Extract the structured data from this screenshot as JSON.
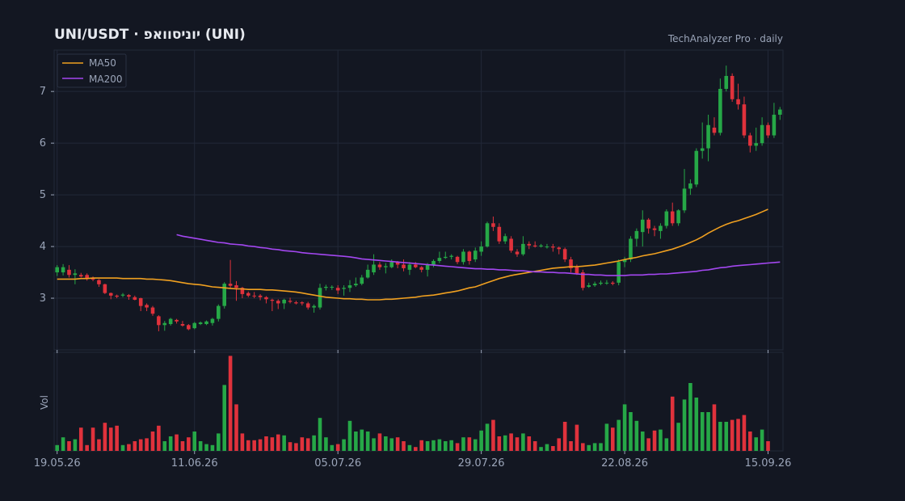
{
  "header": {
    "title": "UNI/USDT  ·  יוניסוואפ (UNI)",
    "source": "TechAnalyzer Pro · daily"
  },
  "colors": {
    "background": "#131722",
    "grid": "#222838",
    "text": "#9aa4b8",
    "title": "#e6e9ef",
    "up": "#26a847",
    "down": "#e0323c",
    "ma50": "#f0a020",
    "ma200": "#a347f0"
  },
  "chart_data": {
    "type": "candlestick",
    "title": "UNI/USDT  ·  יוניסוואפ (UNI)",
    "subtitle": "TechAnalyzer Pro · daily",
    "legend": {
      "position": "top-left",
      "entries": [
        "MA50",
        "MA200"
      ]
    },
    "grid": true,
    "price_axis": {
      "ylim": [
        2.0,
        7.8
      ],
      "ticks": [
        3,
        4,
        5,
        6,
        7
      ]
    },
    "volume_axis": {
      "label": "Vol",
      "ylim": [
        0,
        1.0
      ]
    },
    "x_ticks": [
      {
        "index": 0,
        "label": "19.05.26"
      },
      {
        "index": 23,
        "label": "11.06.26"
      },
      {
        "index": 47,
        "label": "05.07.26"
      },
      {
        "index": 71,
        "label": "29.07.26"
      },
      {
        "index": 95,
        "label": "22.08.26"
      },
      {
        "index": 119,
        "label": "15.09.26"
      }
    ],
    "start_date": "19.05.26",
    "ohlc": [
      [
        3.5,
        3.6,
        3.64,
        3.43
      ],
      [
        3.5,
        3.6,
        3.66,
        3.44
      ],
      [
        3.55,
        3.45,
        3.64,
        3.4
      ],
      [
        3.45,
        3.48,
        3.56,
        3.27
      ],
      [
        3.45,
        3.42,
        3.49,
        3.4
      ],
      [
        3.45,
        3.38,
        3.48,
        3.34
      ],
      [
        3.38,
        3.36,
        3.42,
        3.33
      ],
      [
        3.35,
        3.27,
        3.37,
        3.22
      ],
      [
        3.27,
        3.1,
        3.28,
        3.08
      ],
      [
        3.1,
        3.05,
        3.11,
        2.98
      ],
      [
        3.05,
        3.03,
        3.07,
        3.0
      ],
      [
        3.05,
        3.07,
        3.1,
        3.02
      ],
      [
        3.06,
        3.03,
        3.08,
        2.97
      ],
      [
        3.02,
        2.97,
        3.05,
        2.96
      ],
      [
        3.0,
        2.85,
        3.01,
        2.75
      ],
      [
        2.87,
        2.82,
        2.9,
        2.75
      ],
      [
        2.82,
        2.7,
        2.85,
        2.66
      ],
      [
        2.65,
        2.48,
        2.67,
        2.36
      ],
      [
        2.48,
        2.52,
        2.56,
        2.37
      ],
      [
        2.5,
        2.6,
        2.62,
        2.47
      ],
      [
        2.58,
        2.55,
        2.6,
        2.51
      ],
      [
        2.5,
        2.47,
        2.56,
        2.45
      ],
      [
        2.48,
        2.4,
        2.5,
        2.38
      ],
      [
        2.42,
        2.52,
        2.54,
        2.4
      ],
      [
        2.5,
        2.53,
        2.55,
        2.48
      ],
      [
        2.5,
        2.55,
        2.57,
        2.48
      ],
      [
        2.52,
        2.6,
        2.62,
        2.47
      ],
      [
        2.6,
        2.85,
        2.88,
        2.55
      ],
      [
        2.85,
        3.28,
        3.31,
        2.8
      ],
      [
        3.28,
        3.24,
        3.74,
        3.2
      ],
      [
        3.25,
        3.2,
        3.33,
        2.95
      ],
      [
        3.2,
        3.08,
        3.22,
        3.0
      ],
      [
        3.1,
        3.05,
        3.13,
        3.02
      ],
      [
        3.05,
        3.04,
        3.12,
        3.0
      ],
      [
        3.05,
        3.02,
        3.08,
        2.96
      ],
      [
        3.02,
        2.98,
        3.04,
        2.9
      ],
      [
        2.97,
        2.95,
        2.99,
        2.75
      ],
      [
        2.95,
        2.9,
        2.98,
        2.79
      ],
      [
        2.9,
        2.97,
        2.99,
        2.79
      ],
      [
        2.95,
        2.93,
        3.01,
        2.9
      ],
      [
        2.92,
        2.9,
        2.95,
        2.88
      ],
      [
        2.92,
        2.9,
        2.94,
        2.86
      ],
      [
        2.9,
        2.82,
        2.93,
        2.78
      ],
      [
        2.82,
        2.85,
        2.88,
        2.72
      ],
      [
        2.82,
        3.2,
        3.28,
        2.78
      ],
      [
        3.2,
        3.22,
        3.26,
        3.15
      ],
      [
        3.22,
        3.22,
        3.25,
        3.16
      ],
      [
        3.2,
        3.15,
        3.25,
        3.08
      ],
      [
        3.18,
        3.2,
        3.25,
        3.05
      ],
      [
        3.2,
        3.25,
        3.35,
        3.12
      ],
      [
        3.25,
        3.28,
        3.4,
        3.22
      ],
      [
        3.28,
        3.4,
        3.45,
        3.25
      ],
      [
        3.4,
        3.55,
        3.65,
        3.38
      ],
      [
        3.5,
        3.65,
        3.85,
        3.45
      ],
      [
        3.65,
        3.6,
        3.7,
        3.55
      ],
      [
        3.6,
        3.62,
        3.68,
        3.48
      ],
      [
        3.6,
        3.7,
        3.75,
        3.58
      ],
      [
        3.7,
        3.65,
        3.72,
        3.58
      ],
      [
        3.65,
        3.58,
        3.75,
        3.52
      ],
      [
        3.55,
        3.65,
        3.7,
        3.45
      ],
      [
        3.65,
        3.6,
        3.7,
        3.58
      ],
      [
        3.6,
        3.55,
        3.62,
        3.5
      ],
      [
        3.55,
        3.65,
        3.68,
        3.42
      ],
      [
        3.65,
        3.72,
        3.75,
        3.6
      ],
      [
        3.72,
        3.78,
        3.9,
        3.68
      ],
      [
        3.78,
        3.8,
        3.9,
        3.76
      ],
      [
        3.8,
        3.82,
        3.85,
        3.75
      ],
      [
        3.8,
        3.7,
        3.82,
        3.66
      ],
      [
        3.7,
        3.9,
        3.95,
        3.65
      ],
      [
        3.9,
        3.72,
        3.92,
        3.65
      ],
      [
        3.75,
        3.92,
        3.98,
        3.7
      ],
      [
        3.9,
        4.0,
        4.1,
        3.82
      ],
      [
        4.0,
        4.45,
        4.48,
        3.98
      ],
      [
        4.45,
        4.38,
        4.58,
        4.3
      ],
      [
        4.38,
        4.1,
        4.45,
        4.05
      ],
      [
        4.1,
        4.2,
        4.25,
        4.05
      ],
      [
        4.15,
        3.92,
        4.2,
        3.88
      ],
      [
        3.9,
        3.85,
        3.95,
        3.8
      ],
      [
        3.85,
        4.05,
        4.2,
        3.82
      ],
      [
        4.05,
        4.02,
        4.1,
        3.95
      ],
      [
        4.02,
        4.0,
        4.1,
        3.98
      ],
      [
        4.0,
        4.02,
        4.05,
        3.98
      ],
      [
        4.0,
        4.0,
        4.05,
        3.96
      ],
      [
        4.0,
        3.98,
        4.05,
        3.9
      ],
      [
        3.98,
        3.95,
        4.0,
        3.85
      ],
      [
        3.95,
        3.75,
        3.98,
        3.7
      ],
      [
        3.75,
        3.58,
        3.8,
        3.5
      ],
      [
        3.6,
        3.48,
        3.65,
        3.45
      ],
      [
        3.5,
        3.2,
        3.55,
        3.15
      ],
      [
        3.22,
        3.25,
        3.3,
        3.2
      ],
      [
        3.25,
        3.28,
        3.32,
        3.22
      ],
      [
        3.28,
        3.3,
        3.34,
        3.25
      ],
      [
        3.3,
        3.3,
        3.35,
        3.26
      ],
      [
        3.3,
        3.28,
        3.33,
        3.25
      ],
      [
        3.3,
        3.7,
        3.75,
        3.25
      ],
      [
        3.7,
        3.75,
        3.8,
        3.6
      ],
      [
        3.75,
        4.15,
        4.2,
        3.7
      ],
      [
        4.15,
        4.3,
        4.35,
        4.0
      ],
      [
        4.28,
        4.52,
        4.7,
        4.0
      ],
      [
        4.52,
        4.35,
        4.55,
        4.25
      ],
      [
        4.35,
        4.32,
        4.4,
        4.2
      ],
      [
        4.3,
        4.4,
        4.45,
        4.15
      ],
      [
        4.4,
        4.68,
        4.72,
        4.35
      ],
      [
        4.68,
        4.45,
        4.85,
        4.4
      ],
      [
        4.45,
        4.7,
        4.72,
        4.4
      ],
      [
        4.7,
        5.12,
        5.5,
        4.65
      ],
      [
        5.12,
        5.22,
        5.3,
        5.0
      ],
      [
        5.2,
        5.85,
        5.9,
        5.15
      ],
      [
        5.85,
        5.9,
        6.4,
        5.7
      ],
      [
        5.9,
        6.35,
        6.55,
        5.65
      ],
      [
        6.3,
        6.2,
        6.5,
        6.15
      ],
      [
        6.2,
        7.05,
        7.25,
        6.15
      ],
      [
        7.05,
        7.3,
        7.5,
        7.0
      ],
      [
        7.3,
        6.85,
        7.35,
        6.8
      ],
      [
        6.85,
        6.75,
        7.15,
        6.65
      ],
      [
        6.75,
        6.15,
        6.9,
        6.1
      ],
      [
        6.15,
        5.95,
        6.2,
        5.82
      ],
      [
        5.95,
        6.0,
        6.3,
        5.85
      ],
      [
        6.0,
        6.35,
        6.5,
        5.95
      ],
      [
        6.35,
        6.15,
        6.4,
        6.1
      ],
      [
        6.15,
        6.55,
        6.78,
        6.1
      ],
      [
        6.55,
        6.65,
        6.7,
        6.45
      ]
    ],
    "volume": [
      0.06,
      0.14,
      0.1,
      0.12,
      0.24,
      0.06,
      0.24,
      0.12,
      0.29,
      0.24,
      0.26,
      0.06,
      0.07,
      0.1,
      0.12,
      0.13,
      0.2,
      0.26,
      0.1,
      0.15,
      0.17,
      0.1,
      0.14,
      0.2,
      0.1,
      0.07,
      0.06,
      0.18,
      0.68,
      0.98,
      0.48,
      0.18,
      0.11,
      0.11,
      0.12,
      0.15,
      0.14,
      0.17,
      0.16,
      0.09,
      0.08,
      0.14,
      0.13,
      0.16,
      0.34,
      0.14,
      0.06,
      0.07,
      0.12,
      0.31,
      0.2,
      0.22,
      0.2,
      0.13,
      0.18,
      0.15,
      0.13,
      0.14,
      0.1,
      0.06,
      0.04,
      0.11,
      0.1,
      0.11,
      0.12,
      0.1,
      0.11,
      0.08,
      0.14,
      0.14,
      0.12,
      0.21,
      0.28,
      0.32,
      0.15,
      0.16,
      0.18,
      0.14,
      0.18,
      0.15,
      0.1,
      0.04,
      0.07,
      0.05,
      0.13,
      0.3,
      0.1,
      0.27,
      0.08,
      0.06,
      0.08,
      0.08,
      0.28,
      0.24,
      0.32,
      0.48,
      0.4,
      0.31,
      0.2,
      0.13,
      0.21,
      0.22,
      0.13,
      0.56,
      0.29,
      0.53,
      0.7,
      0.55,
      0.4,
      0.4,
      0.48,
      0.3,
      0.3,
      0.32,
      0.33,
      0.37,
      0.2,
      0.14,
      0.22,
      0.1
    ],
    "ma50_start_index": 0,
    "ma50": [
      3.37,
      3.37,
      3.37,
      3.37,
      3.38,
      3.38,
      3.39,
      3.39,
      3.39,
      3.39,
      3.39,
      3.38,
      3.38,
      3.38,
      3.38,
      3.37,
      3.37,
      3.36,
      3.35,
      3.34,
      3.32,
      3.3,
      3.28,
      3.27,
      3.26,
      3.24,
      3.22,
      3.21,
      3.2,
      3.19,
      3.18,
      3.18,
      3.17,
      3.17,
      3.17,
      3.16,
      3.16,
      3.15,
      3.14,
      3.13,
      3.12,
      3.1,
      3.08,
      3.06,
      3.04,
      3.02,
      3.01,
      3.0,
      2.99,
      2.99,
      2.98,
      2.98,
      2.97,
      2.97,
      2.97,
      2.98,
      2.98,
      2.99,
      3.0,
      3.01,
      3.02,
      3.04,
      3.05,
      3.06,
      3.08,
      3.1,
      3.12,
      3.14,
      3.17,
      3.2,
      3.22,
      3.26,
      3.3,
      3.34,
      3.38,
      3.41,
      3.44,
      3.46,
      3.48,
      3.5,
      3.52,
      3.54,
      3.56,
      3.58,
      3.59,
      3.6,
      3.61,
      3.61,
      3.62,
      3.63,
      3.64,
      3.66,
      3.68,
      3.7,
      3.72,
      3.75,
      3.77,
      3.79,
      3.82,
      3.84,
      3.86,
      3.89,
      3.92,
      3.95,
      3.99,
      4.03,
      4.08,
      4.13,
      4.19,
      4.26,
      4.32,
      4.38,
      4.43,
      4.47,
      4.5,
      4.54,
      4.58,
      4.62,
      4.67,
      4.72
    ],
    "ma200_start_index": 20,
    "ma200": [
      4.23,
      4.2,
      4.18,
      4.16,
      4.14,
      4.12,
      4.1,
      4.08,
      4.07,
      4.05,
      4.04,
      4.03,
      4.01,
      4.0,
      3.98,
      3.97,
      3.95,
      3.94,
      3.92,
      3.91,
      3.9,
      3.88,
      3.87,
      3.86,
      3.85,
      3.84,
      3.83,
      3.82,
      3.81,
      3.8,
      3.78,
      3.76,
      3.75,
      3.74,
      3.73,
      3.72,
      3.71,
      3.7,
      3.69,
      3.68,
      3.67,
      3.66,
      3.65,
      3.64,
      3.63,
      3.62,
      3.61,
      3.6,
      3.59,
      3.58,
      3.57,
      3.57,
      3.56,
      3.56,
      3.55,
      3.55,
      3.54,
      3.53,
      3.53,
      3.52,
      3.51,
      3.51,
      3.5,
      3.5,
      3.49,
      3.49,
      3.48,
      3.47,
      3.46,
      3.46,
      3.45,
      3.45,
      3.44,
      3.44,
      3.44,
      3.44,
      3.45,
      3.45,
      3.45,
      3.46,
      3.46,
      3.47,
      3.47,
      3.48,
      3.49,
      3.5,
      3.51,
      3.52,
      3.54,
      3.55,
      3.57,
      3.59,
      3.6,
      3.62,
      3.63,
      3.64,
      3.65,
      3.66,
      3.67,
      3.68,
      3.69,
      3.7
    ]
  }
}
